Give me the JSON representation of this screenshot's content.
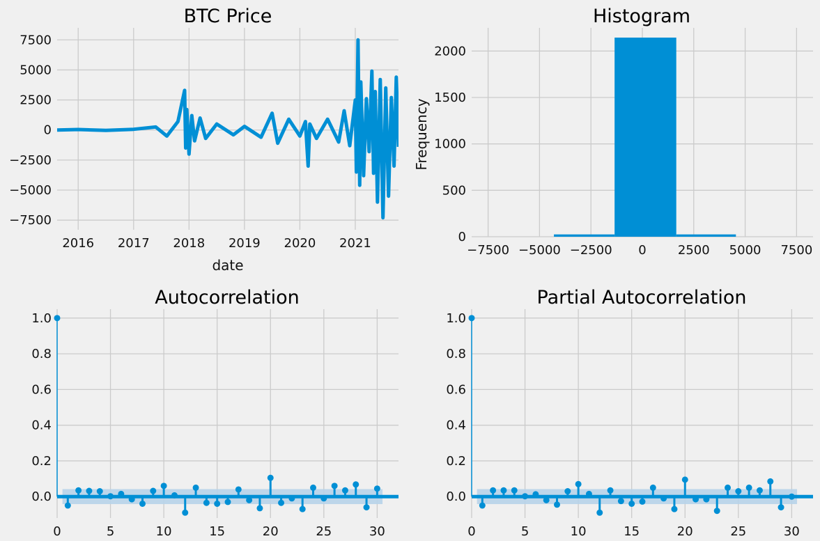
{
  "colors": {
    "background": "#f0f0f0",
    "grid": "#cbcbcb",
    "series": "#008fd5",
    "ci_band": "#b7d3e9"
  },
  "chart_data": [
    {
      "type": "line",
      "title": "BTC Price",
      "xlabel": "date",
      "ylabel": "",
      "xlim": [
        2015.62,
        2021.78
      ],
      "ylim": [
        -8300,
        8500
      ],
      "xticks": [
        2016,
        2017,
        2018,
        2019,
        2020,
        2021
      ],
      "xtick_labels": [
        "2016",
        "2017",
        "2018",
        "2019",
        "2020",
        "2021"
      ],
      "yticks": [
        -7500,
        -5000,
        -2500,
        0,
        2500,
        5000,
        7500
      ],
      "ytick_labels": [
        "−7500",
        "−5000",
        "−2500",
        "0",
        "2500",
        "5000",
        "7500"
      ],
      "grid": true,
      "series": [
        {
          "x": [
            2015.62,
            2016.0,
            2016.5,
            2017.0,
            2017.4,
            2017.6,
            2017.8,
            2017.92,
            2017.94,
            2017.96,
            2018.0,
            2018.05,
            2018.1,
            2018.2,
            2018.3,
            2018.5,
            2018.8,
            2019.0,
            2019.3,
            2019.5,
            2019.6,
            2019.8,
            2020.0,
            2020.1,
            2020.15,
            2020.18,
            2020.3,
            2020.5,
            2020.7,
            2020.8,
            2020.9,
            2021.0,
            2021.02,
            2021.05,
            2021.08,
            2021.1,
            2021.15,
            2021.2,
            2021.25,
            2021.3,
            2021.33,
            2021.36,
            2021.4,
            2021.45,
            2021.5,
            2021.55,
            2021.6,
            2021.65,
            2021.7,
            2021.74,
            2021.78
          ],
          "values": [
            0,
            40,
            -30,
            60,
            250,
            -500,
            700,
            3300,
            -1500,
            1700,
            -2000,
            1200,
            -900,
            1000,
            -700,
            500,
            -400,
            300,
            -600,
            1400,
            -1100,
            900,
            -500,
            700,
            -3000,
            500,
            -700,
            900,
            -1000,
            1600,
            -1300,
            2500,
            -3500,
            7500,
            -4600,
            4000,
            -3800,
            2600,
            -1800,
            4900,
            -3600,
            3200,
            -6000,
            4200,
            -7300,
            3500,
            -5500,
            2700,
            -3000,
            4400,
            -1400
          ]
        }
      ]
    },
    {
      "type": "bar",
      "title": "Histogram",
      "xlabel": "",
      "ylabel": "Frequency",
      "xlim": [
        -8300,
        8300
      ],
      "ylim": [
        0,
        2250
      ],
      "xticks": [
        -7500,
        -5000,
        -2500,
        0,
        2500,
        5000,
        7500
      ],
      "xtick_labels": [
        "−7500",
        "−5000",
        "−2500",
        "0",
        "2500",
        "5000",
        "7500"
      ],
      "yticks": [
        0,
        500,
        1000,
        1500,
        2000
      ],
      "ytick_labels": [
        "0",
        "500",
        "1000",
        "1500",
        "2000"
      ],
      "grid": true,
      "bins": [
        {
          "start": -4300,
          "end": -1350,
          "count": 25
        },
        {
          "start": -1350,
          "end": 1650,
          "count": 2145
        },
        {
          "start": 1650,
          "end": 4550,
          "count": 25
        }
      ]
    },
    {
      "type": "stem",
      "title": "Autocorrelation",
      "xlabel": "",
      "ylabel": "",
      "xlim": [
        0,
        32
      ],
      "ylim": [
        -0.12,
        1.05
      ],
      "xticks": [
        0,
        5,
        10,
        15,
        20,
        25,
        30
      ],
      "xtick_labels": [
        "0",
        "5",
        "10",
        "15",
        "20",
        "25",
        "30"
      ],
      "yticks": [
        0.0,
        0.2,
        0.4,
        0.6,
        0.8,
        1.0
      ],
      "ytick_labels": [
        "0.0",
        "0.2",
        "0.4",
        "0.6",
        "0.8",
        "1.0"
      ],
      "grid": true,
      "confidence_band": [
        -0.042,
        0.042
      ],
      "lags": [
        0,
        1,
        2,
        3,
        4,
        5,
        6,
        7,
        8,
        9,
        10,
        11,
        12,
        13,
        14,
        15,
        16,
        17,
        18,
        19,
        20,
        21,
        22,
        23,
        24,
        25,
        26,
        27,
        28,
        29,
        30
      ],
      "values": [
        1.0,
        -0.05,
        0.035,
        0.032,
        0.03,
        0.002,
        0.015,
        -0.015,
        -0.04,
        0.032,
        0.06,
        0.007,
        -0.09,
        0.05,
        -0.035,
        -0.04,
        -0.03,
        0.04,
        -0.02,
        -0.065,
        0.105,
        -0.035,
        -0.01,
        -0.07,
        0.05,
        -0.01,
        0.06,
        0.035,
        0.068,
        -0.06,
        0.045
      ]
    },
    {
      "type": "stem",
      "title": "Partial Autocorrelation",
      "xlabel": "",
      "ylabel": "",
      "xlim": [
        0,
        32
      ],
      "ylim": [
        -0.12,
        1.05
      ],
      "xticks": [
        0,
        5,
        10,
        15,
        20,
        25,
        30
      ],
      "xtick_labels": [
        "0",
        "5",
        "10",
        "15",
        "20",
        "25",
        "30"
      ],
      "yticks": [
        0.0,
        0.2,
        0.4,
        0.6,
        0.8,
        1.0
      ],
      "ytick_labels": [
        "0.0",
        "0.2",
        "0.4",
        "0.6",
        "0.8",
        "1.0"
      ],
      "grid": true,
      "confidence_band": [
        -0.042,
        0.042
      ],
      "lags": [
        0,
        1,
        2,
        3,
        4,
        5,
        6,
        7,
        8,
        9,
        10,
        11,
        12,
        13,
        14,
        15,
        16,
        17,
        18,
        19,
        20,
        21,
        22,
        23,
        24,
        25,
        26,
        27,
        28,
        29,
        30
      ],
      "values": [
        1.0,
        -0.05,
        0.035,
        0.035,
        0.035,
        0.002,
        0.013,
        -0.02,
        -0.045,
        0.03,
        0.07,
        0.015,
        -0.09,
        0.035,
        -0.025,
        -0.04,
        -0.028,
        0.05,
        -0.01,
        -0.07,
        0.095,
        -0.015,
        -0.015,
        -0.08,
        0.05,
        0.03,
        0.05,
        0.035,
        0.085,
        -0.06,
        0.0
      ]
    }
  ]
}
